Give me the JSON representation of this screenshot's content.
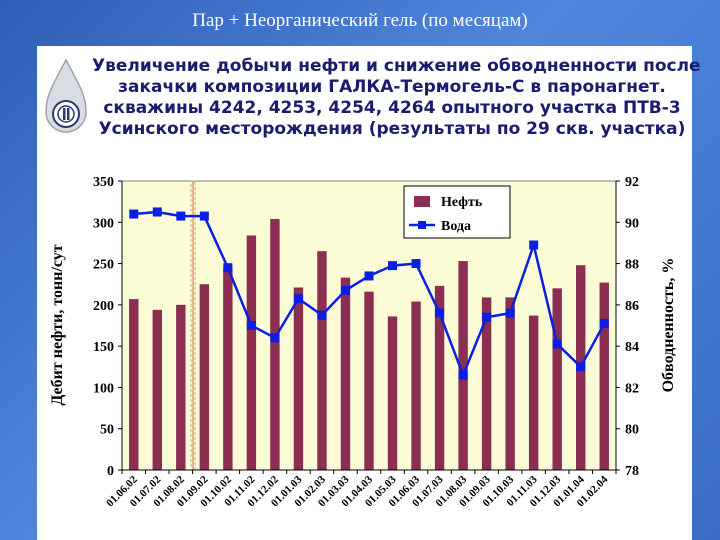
{
  "slide": {
    "title": "Пар + Неорганический гель (по месяцам)",
    "heading_lines": [
      "Увеличение добычи нефти и снижение обводненности после",
      "закачки композиции ГАЛКА-Термогель-С в паронагнет.",
      "скважины 4242, 4253, 4254, 4264 опытного участка ПТВ-3",
      "Усинского месторождения (результаты по 29 скв. участка)"
    ],
    "logo_icon": "company-drop-logo-icon"
  },
  "colors": {
    "bar": "#8b2e52",
    "line": "#0a1ee6",
    "plot_bg": "#fbfbd6",
    "outer_bg": "#2f5fb6",
    "marker_line": "#e8a080"
  },
  "chart_data": {
    "type": "bar",
    "categories": [
      "01.06.02",
      "01.07.02",
      "01.08.02",
      "01.09.02",
      "01.10.02",
      "01.11.02",
      "01.12.02",
      "01.01.03",
      "01.02.03",
      "01.03.03",
      "01.04.03",
      "01.05.03",
      "01.06.03",
      "01.07.03",
      "01.08.03",
      "01.09.03",
      "01.10.03",
      "01.11.03",
      "01.12.03",
      "01.01.04",
      "01.02.04"
    ],
    "series": [
      {
        "name": "Нефть",
        "axis": "left",
        "kind": "bar",
        "values": [
          207,
          194,
          200,
          225,
          245,
          284,
          304,
          221,
          265,
          233,
          216,
          186,
          204,
          223,
          253,
          209,
          209,
          187,
          220,
          248,
          227
        ]
      },
      {
        "name": "Вода",
        "axis": "right",
        "kind": "line",
        "values": [
          90.4,
          90.5,
          90.3,
          90.3,
          87.8,
          85.0,
          84.4,
          86.3,
          85.5,
          86.7,
          87.4,
          87.9,
          88.0,
          85.6,
          82.6,
          85.4,
          85.6,
          88.9,
          84.1,
          83.0,
          85.1
        ]
      }
    ],
    "ylabel": "Дебит нефти, тонн/сут",
    "y2label": "Обводненность, %",
    "ylim": [
      0,
      350
    ],
    "yticks": [
      0,
      50,
      100,
      150,
      200,
      250,
      300,
      350
    ],
    "y2lim": [
      78,
      92
    ],
    "y2ticks": [
      78,
      80,
      82,
      84,
      86,
      88,
      90,
      92
    ],
    "treatment_marker_category": "01.09.02",
    "legend": "top-right",
    "grid": false
  }
}
